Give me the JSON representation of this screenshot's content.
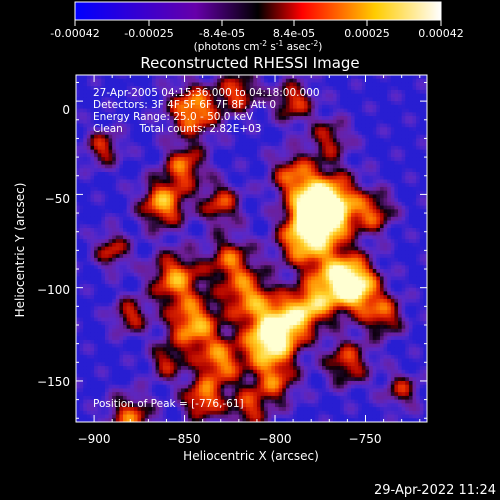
{
  "colorbar": {
    "ticks": [
      "-0.00042",
      "-0.00025",
      "-8.4e-05",
      "8.4e-05",
      "0.00025",
      "0.00042"
    ],
    "tick_values": [
      -0.00042,
      -0.00025,
      -8.4e-05,
      8.4e-05,
      0.00025,
      0.00042
    ],
    "range": [
      -0.00042,
      0.00042
    ],
    "units_main": "(photons cm",
    "units_sup1": "-2",
    "units_mid": " s",
    "units_sup2": "-1",
    "units_end": " asec",
    "units_sup3": "-2",
    "units_close": ")",
    "colors": [
      "#0000ff",
      "#5500aa",
      "#000000",
      "#ff0000",
      "#ffcc00",
      "#ffffff"
    ]
  },
  "footer": {
    "timestamp": "29-Apr-2022 11:24"
  },
  "chart_data": {
    "type": "heatmap",
    "title": "Reconstructed RHESSI Image",
    "xlabel": "Heliocentric X (arcsec)",
    "ylabel": "Heliocentric Y (arcsec)",
    "xlim": [
      -910,
      -716
    ],
    "ylim": [
      -172,
      14
    ],
    "x_ticks": [
      -900,
      -850,
      -800,
      -750
    ],
    "x_tick_labels": [
      "−900",
      "−850",
      "−800",
      "−750"
    ],
    "y_ticks": [
      0,
      -50,
      -100,
      -150
    ],
    "y_tick_labels": [
      "0",
      "−50",
      "−100",
      "−150"
    ],
    "annotations": [
      "27-Apr-2005 04:15:36.000 to 04:18:00.000",
      "Detectors: 3F 4F 5F 6F 7F 8F, Att 0",
      "Energy Range: 25.0 - 50.0 keV",
      "Clean     Total counts: 2.82E+03"
    ],
    "peak_label": "Position of Peak = [-776,-61]",
    "peak": [
      -776,
      -61
    ]
  }
}
